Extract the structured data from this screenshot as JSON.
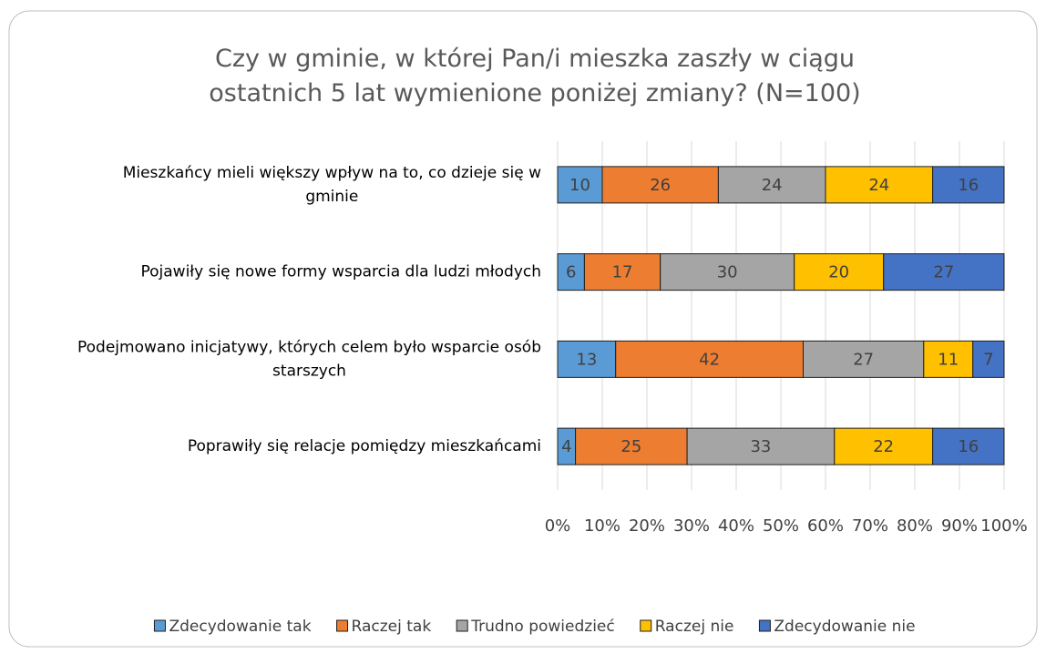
{
  "chart_data": {
    "type": "stacked_barh",
    "title": "Czy w gminie, w której Pan/i mieszka zaszły w ciągu ostatnich 5 lat wymienione poniżej zmiany? (N=100)",
    "categories": [
      "Mieszkańcy mieli większy wpływ na to, co dzieje się w gminie",
      "Pojawiły się nowe formy wsparcia dla ludzi młodych",
      "Podejmowano inicjatywy, których celem było wsparcie osób starszych",
      "Poprawiły się relacje pomiędzy mieszkańcami"
    ],
    "series": [
      {
        "name": "Zdecydowanie tak",
        "color": "#5b9bd5",
        "values": [
          10,
          6,
          13,
          4
        ]
      },
      {
        "name": "Raczej tak",
        "color": "#ed7d31",
        "values": [
          26,
          17,
          42,
          25
        ]
      },
      {
        "name": "Trudno powiedzieć",
        "color": "#a5a5a5",
        "values": [
          24,
          30,
          27,
          33
        ]
      },
      {
        "name": "Raczej nie",
        "color": "#ffc000",
        "values": [
          24,
          20,
          11,
          22
        ]
      },
      {
        "name": "Zdecydowanie nie",
        "color": "#4472c4",
        "values": [
          16,
          27,
          7,
          16
        ]
      }
    ],
    "xlim": [
      0,
      100
    ],
    "xticks": [
      {
        "value": 0,
        "label": "0%"
      },
      {
        "value": 10,
        "label": "10%"
      },
      {
        "value": 20,
        "label": "20%"
      },
      {
        "value": 30,
        "label": "30%"
      },
      {
        "value": 40,
        "label": "40%"
      },
      {
        "value": 50,
        "label": "50%"
      },
      {
        "value": 60,
        "label": "60%"
      },
      {
        "value": 70,
        "label": "70%"
      },
      {
        "value": 80,
        "label": "80%"
      },
      {
        "value": 90,
        "label": "90%"
      },
      {
        "value": 100,
        "label": "100%"
      }
    ],
    "grid": true,
    "legend": "bottom"
  }
}
